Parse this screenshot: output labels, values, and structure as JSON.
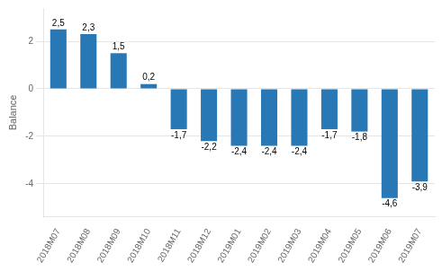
{
  "chart_data": {
    "type": "bar",
    "categories": [
      "2018M07",
      "2018M08",
      "2018M09",
      "2018M10",
      "2018M11",
      "2018M12",
      "2019M01",
      "2019M02",
      "2019M03",
      "2019M04",
      "2019M05",
      "2019M06",
      "2019M07"
    ],
    "values": [
      2.5,
      2.3,
      1.5,
      0.2,
      -1.7,
      -2.2,
      -2.4,
      -2.4,
      -2.4,
      -1.7,
      -1.8,
      -4.6,
      -3.9
    ],
    "value_labels": [
      "2,5",
      "2,3",
      "1,5",
      "0,2",
      "-1,7",
      "-2,2",
      "-2,4",
      "-2,4",
      "-2,4",
      "-1,7",
      "-1,8",
      "-4,6",
      "-3,9"
    ],
    "data_labels": true,
    "color": "#2878b5",
    "ylabel": "Balance",
    "ylim": [
      -5.4,
      3.4
    ],
    "yticks": [
      -4,
      -2,
      0,
      2
    ],
    "grid": true
  }
}
